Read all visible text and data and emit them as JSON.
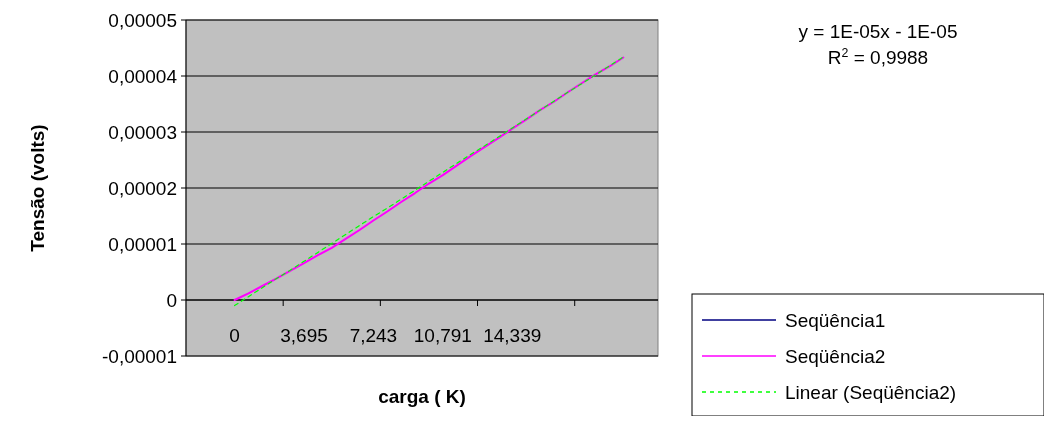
{
  "chart_data": {
    "type": "line",
    "xlabel": "carga ( K)",
    "ylabel": "Tensão (volts)",
    "categories": [
      null,
      null,
      null,
      "0",
      null,
      null,
      null,
      null,
      "3,695",
      null,
      null,
      null,
      null,
      "7,243",
      null,
      null,
      null,
      null,
      "10,791",
      null,
      null,
      null,
      null,
      "14,339",
      null,
      null,
      null,
      null,
      null,
      null,
      null,
      null,
      null,
      null
    ],
    "series": [
      {
        "name": "Seqüência1",
        "color": "#000080",
        "values": [
          null,
          null,
          null,
          null,
          null,
          null,
          null,
          null,
          null,
          null,
          null,
          null,
          null,
          null,
          null,
          null,
          null,
          null,
          null,
          null,
          null,
          null,
          null,
          null,
          null,
          null,
          null,
          null,
          null,
          null,
          null,
          null,
          null,
          null
        ]
      },
      {
        "name": "Seqüência2",
        "color": "#ff00ff",
        "values": [
          null,
          null,
          null,
          0,
          1.2e-06,
          2.5e-06,
          3.8e-06,
          5.2e-06,
          6.6e-06,
          8e-06,
          9.3e-06,
          1.09e-05,
          1.25e-05,
          1.42e-05,
          1.58e-05,
          1.75e-05,
          1.91e-05,
          2.08e-05,
          2.23e-05,
          2.4e-05,
          2.57e-05,
          2.73e-05,
          2.89e-05,
          3.06e-05,
          3.22e-05,
          3.39e-05,
          3.54e-05,
          3.71e-05,
          3.87e-05,
          4.03e-05,
          4.17e-05,
          4.33e-05,
          null,
          null
        ]
      },
      {
        "name": "Linear (Seqüência2)",
        "color": "#00ff00",
        "line_style": "dashed",
        "values": [
          null,
          null,
          null,
          -1e-06,
          6e-07,
          2.2e-06,
          3.8e-06,
          5.3e-06,
          6.9e-06,
          8.5e-06,
          1.01e-05,
          1.17e-05,
          1.33e-05,
          1.49e-05,
          1.64e-05,
          1.8e-05,
          1.96e-05,
          2.12e-05,
          2.28e-05,
          2.44e-05,
          2.6e-05,
          2.75e-05,
          2.91e-05,
          3.07e-05,
          3.23e-05,
          3.39e-05,
          3.55e-05,
          3.71e-05,
          3.86e-05,
          4.02e-05,
          4.18e-05,
          4.34e-05,
          null,
          null
        ]
      }
    ],
    "ylim": [
      -1e-05,
      5e-05
    ],
    "yticks": [
      {
        "value": -1e-05,
        "label": "-0,00001"
      },
      {
        "value": 0,
        "label": "0"
      },
      {
        "value": 1e-05,
        "label": "0,00001"
      },
      {
        "value": 2e-05,
        "label": "0,00002"
      },
      {
        "value": 3e-05,
        "label": "0,00003"
      },
      {
        "value": 4e-05,
        "label": "0,00004"
      },
      {
        "value": 5e-05,
        "label": "0,00005"
      }
    ],
    "grid": "y",
    "legend": "bottom right",
    "line_style": "solid",
    "marker": "none",
    "annotations": [
      "y = 1E-05x - 1E-05",
      "R$^{2}$ = 0,9988"
    ]
  }
}
